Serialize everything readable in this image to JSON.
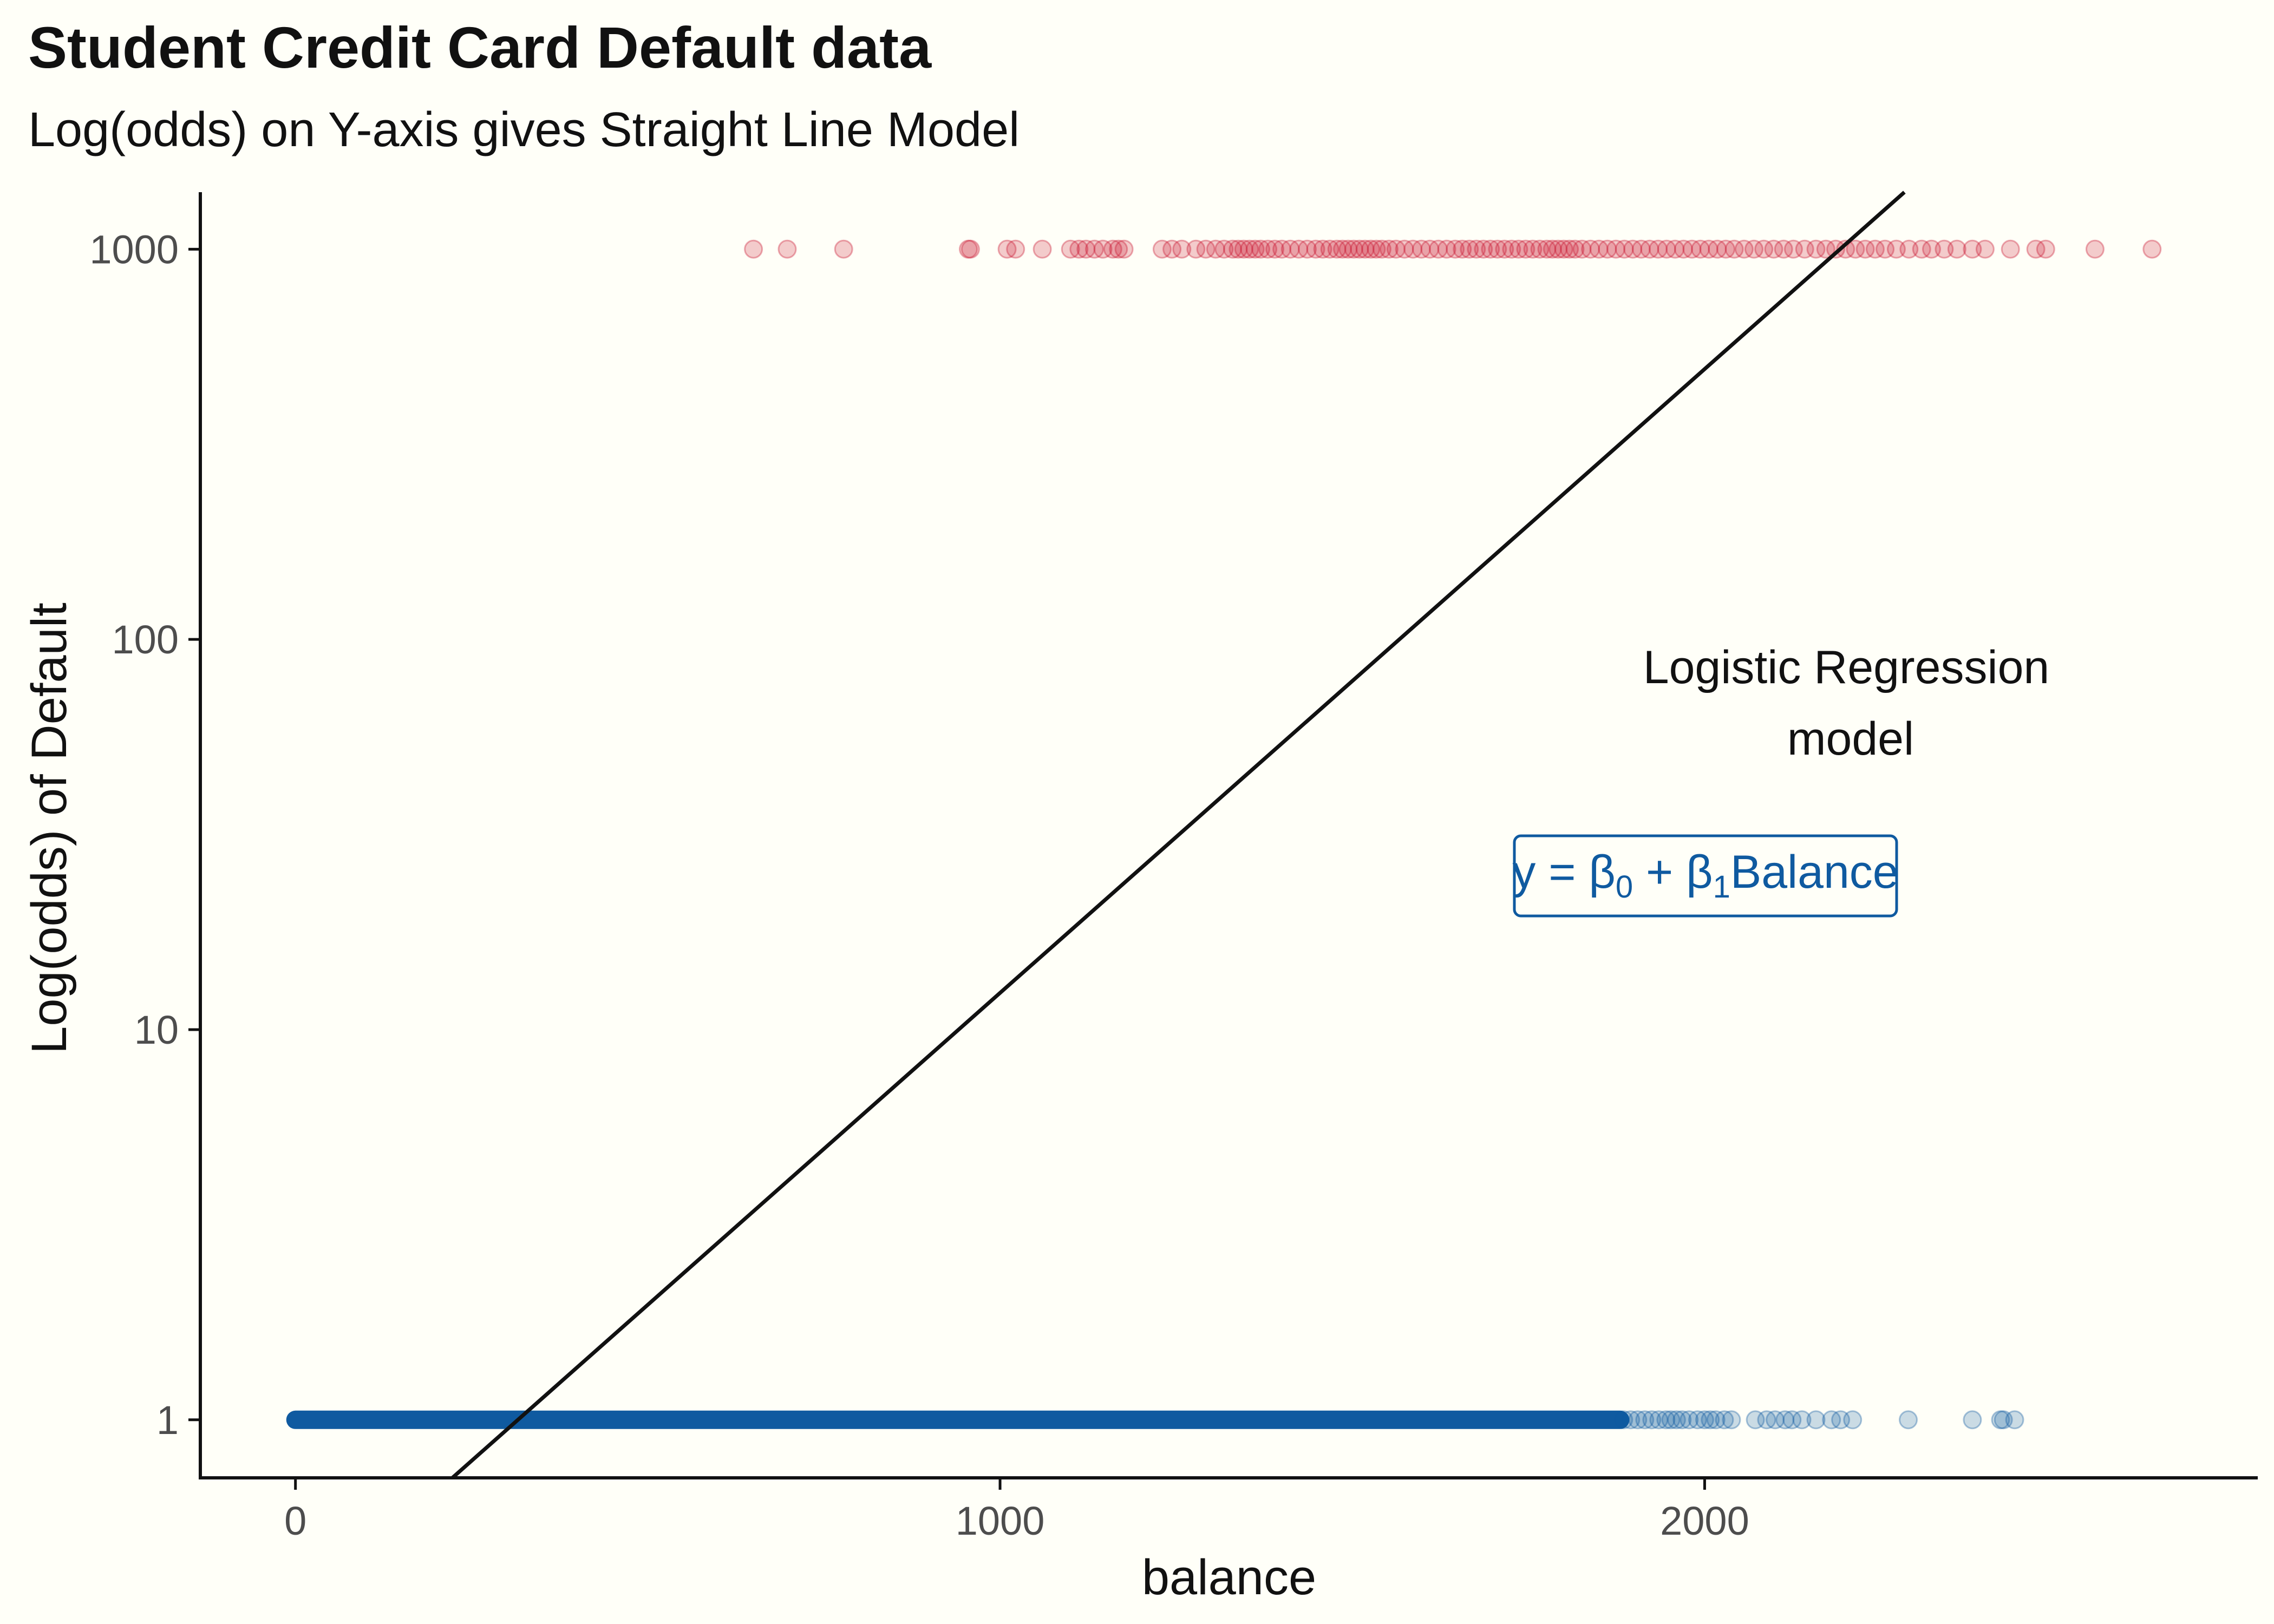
{
  "chart_data": {
    "type": "scatter",
    "title": "Student Credit Card Default data",
    "subtitle": "Log(odds) on Y-axis gives Straight Line Model",
    "xlabel": "balance",
    "ylabel": "Log(odds) of Default",
    "x_ticks": [
      0,
      1000,
      2000
    ],
    "x_tick_labels": [
      "0",
      "1000",
      "2000"
    ],
    "y_scale": "log10",
    "y_ticks": [
      1,
      10,
      100,
      1000
    ],
    "y_tick_labels": [
      "1",
      "10",
      "100",
      "1000"
    ],
    "xlim": [
      -135,
      2785
    ],
    "ylim": [
      0.71,
      1400
    ],
    "grid": false,
    "legend": "none",
    "series": [
      {
        "y": 1000,
        "color": "#C8102E",
        "x": [
          650,
          698,
          778,
          955,
          958,
          1010,
          1022,
          1060,
          1100,
          1112,
          1122,
          1134,
          1146,
          1160,
          1168,
          1176,
          1230,
          1244,
          1258,
          1278,
          1292,
          1306,
          1318,
          1330,
          1338,
          1346,
          1354,
          1362,
          1370,
          1380,
          1390,
          1400,
          1412,
          1424,
          1436,
          1448,
          1458,
          1468,
          1478,
          1486,
          1494,
          1502,
          1510,
          1518,
          1526,
          1534,
          1542,
          1552,
          1562,
          1574,
          1586,
          1598,
          1610,
          1622,
          1634,
          1646,
          1656,
          1666,
          1676,
          1686,
          1696,
          1706,
          1716,
          1726,
          1736,
          1746,
          1756,
          1766,
          1776,
          1784,
          1792,
          1800,
          1808,
          1816,
          1826,
          1838,
          1850,
          1862,
          1874,
          1886,
          1898,
          1910,
          1922,
          1934,
          1946,
          1958,
          1970,
          1982,
          1994,
          2006,
          2018,
          2030,
          2042,
          2056,
          2070,
          2084,
          2098,
          2112,
          2126,
          2142,
          2158,
          2172,
          2186,
          2200,
          2214,
          2228,
          2242,
          2256,
          2272,
          2290,
          2308,
          2322,
          2340,
          2358,
          2380,
          2398,
          2434,
          2470,
          2484,
          2554,
          2635
        ]
      },
      {
        "y": 1,
        "color": "#0F5AA0",
        "x_dense_range": [
          0,
          1880
        ],
        "x": [
          1885,
          1895,
          1905,
          1915,
          1925,
          1935,
          1945,
          1952,
          1960,
          1968,
          1978,
          1990,
          2000,
          2008,
          2016,
          2028,
          2038,
          2072,
          2088,
          2100,
          2114,
          2124,
          2138,
          2158,
          2180,
          2193,
          2210,
          2289,
          2380,
          2420,
          2424,
          2440
        ]
      }
    ],
    "fit_line": {
      "label": "Logistic Regression model",
      "color": "#111111",
      "points": [
        [
          222.7,
          0.71
        ],
        [
          2283.5,
          1400
        ]
      ]
    },
    "annotations": {
      "model_note": [
        "Logistic Regression",
        "model"
      ],
      "equation": {
        "prefix": "y = β",
        "sub0": "0",
        "mid": " + β",
        "sub1": "1",
        "suffix": "Balance",
        "color": "#0F5AA0"
      }
    }
  }
}
